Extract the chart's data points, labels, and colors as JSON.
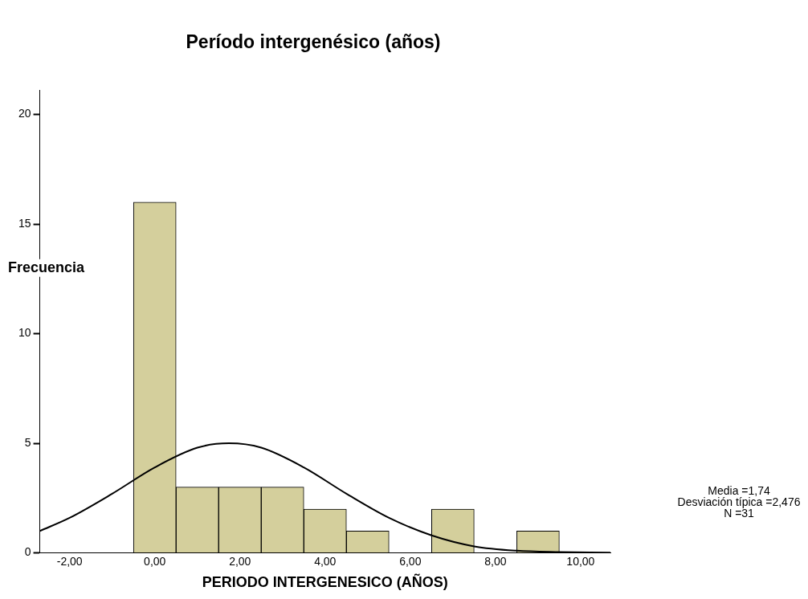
{
  "chart_data": {
    "type": "histogram",
    "title": "Período intergenésico (años)",
    "xlabel": "PERIODO INTERGENESICO (AÑOS)",
    "ylabel": "Frecuencia",
    "bins": [
      -0.5,
      0.5,
      1.5,
      2.5,
      3.5,
      4.5,
      5.5,
      6.5,
      7.5,
      8.5,
      9.5
    ],
    "values": [
      16,
      3,
      3,
      3,
      2,
      1,
      0,
      2,
      0,
      1
    ],
    "color": "#d4cf9c",
    "series": [
      {
        "type": "line",
        "color": "#000000",
        "x": [
          -2.7,
          -2,
          -1,
          0,
          1,
          1.74,
          2.5,
          3.5,
          4.5,
          5.5,
          6.5,
          7.5,
          8.5,
          9.5,
          10.7
        ],
        "values": [
          1.0,
          1.6,
          2.7,
          3.9,
          4.8,
          5.0,
          4.8,
          3.9,
          2.7,
          1.6,
          0.8,
          0.3,
          0.1,
          0.04,
          0.01
        ]
      }
    ],
    "xlim": [
      -2.7,
      10.7
    ],
    "xticks": [
      {
        "value": -2,
        "label": "-2,00"
      },
      {
        "value": 0,
        "label": "0,00"
      },
      {
        "value": 2,
        "label": "2,00"
      },
      {
        "value": 4,
        "label": "4,00"
      },
      {
        "value": 6,
        "label": "6,00"
      },
      {
        "value": 8,
        "label": "8,00"
      },
      {
        "value": 10,
        "label": "10,00"
      }
    ],
    "ylim": [
      0,
      21.1
    ],
    "yticks": [
      0,
      5,
      10,
      15,
      20
    ],
    "grid": false,
    "legend": false,
    "marker": "none",
    "annotations": [
      "Media =1,74",
      "Desviación típica =2,476",
      "N =31"
    ]
  }
}
